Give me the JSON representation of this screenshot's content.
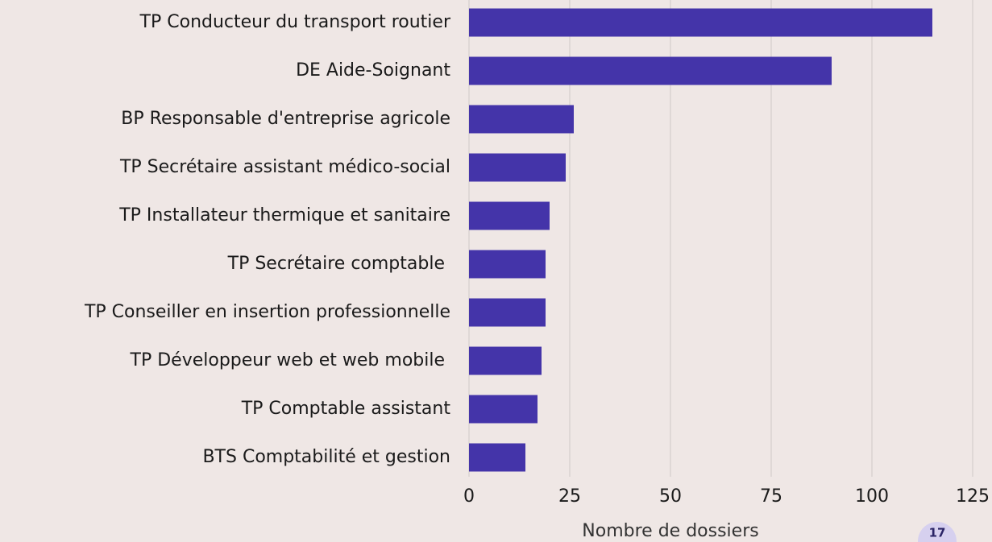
{
  "chart_data": {
    "type": "bar",
    "orientation": "horizontal",
    "categories": [
      "TP Conducteur du transport routier",
      "DE Aide-Soignant",
      "BP Responsable d'entreprise agricole",
      "TP Secrétaire assistant médico-social",
      "TP Installateur thermique et sanitaire",
      "TP Secrétaire comptable ",
      "TP Conseiller en insertion professionnelle",
      "TP Développeur web et web mobile ",
      "TP Comptable assistant",
      "BTS Comptabilité et gestion"
    ],
    "values": [
      115,
      90,
      26,
      24,
      20,
      19,
      19,
      18,
      17,
      14
    ],
    "color": "#4434a9",
    "xlabel": "Nombre de dossiers",
    "xlim": [
      0,
      125
    ],
    "xticks": [
      0,
      25,
      50,
      75,
      100,
      125
    ],
    "grid": true
  },
  "page_number": "17"
}
